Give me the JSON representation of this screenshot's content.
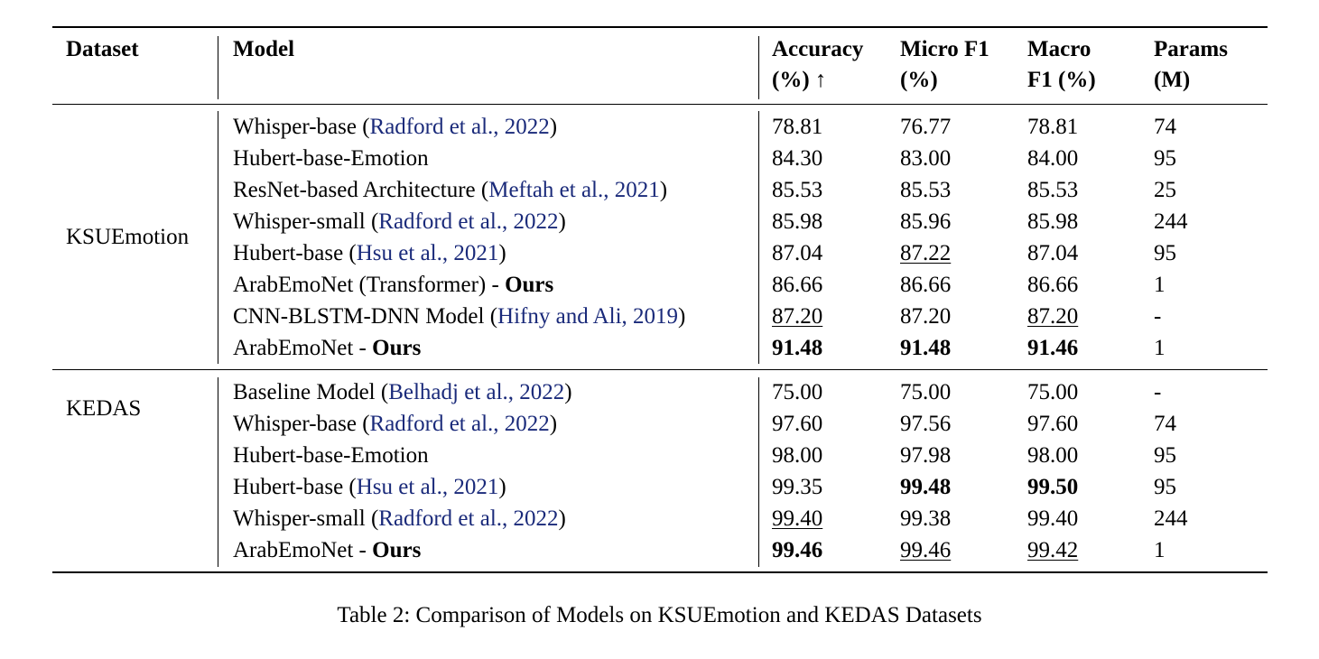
{
  "headers": {
    "dataset": "Dataset",
    "model": "Model",
    "accuracy": [
      "Accuracy",
      "(%) ↑"
    ],
    "micro": [
      "Micro F1",
      "(%)"
    ],
    "macro": [
      "Macro",
      "F1 (%)"
    ],
    "params": [
      "Params",
      "(M)"
    ]
  },
  "groups": [
    {
      "dataset": "KSUEmotion",
      "rows": [
        {
          "model": "Whisper-base",
          "cite": "Radford et al., 2022",
          "ours": "",
          "acc": "78.81",
          "micro": "76.77",
          "macro": "78.81",
          "params": "74"
        },
        {
          "model": "Hubert-base-Emotion",
          "cite": "",
          "ours": "",
          "acc": "84.30",
          "micro": "83.00",
          "macro": "84.00",
          "params": "95"
        },
        {
          "model": "ResNet-based Architecture",
          "cite": "Meftah et al., 2021",
          "ours": "",
          "acc": "85.53",
          "micro": "85.53",
          "macro": "85.53",
          "params": "25"
        },
        {
          "model": "Whisper-small",
          "cite": "Radford et al., 2022",
          "ours": "",
          "acc": "85.98",
          "micro": "85.96",
          "macro": "85.98",
          "params": "244"
        },
        {
          "model": "Hubert-base",
          "cite": "Hsu et al., 2021",
          "ours": "",
          "acc": "87.04",
          "micro": "87.22",
          "macro": "87.04",
          "params": "95",
          "fmt": {
            "micro": "u"
          }
        },
        {
          "model": "ArabEmoNet (Transformer) - ",
          "cite": "",
          "ours": "Ours",
          "acc": "86.66",
          "micro": "86.66",
          "macro": "86.66",
          "params": "1"
        },
        {
          "model": "CNN-BLSTM-DNN Model",
          "cite": "Hifny and Ali, 2019",
          "ours": "",
          "acc": "87.20",
          "micro": "87.20",
          "macro": "87.20",
          "params": "-",
          "fmt": {
            "acc": "u",
            "macro": "u"
          }
        },
        {
          "model": "ArabEmoNet - ",
          "cite": "",
          "ours": "Ours",
          "acc": "91.48",
          "micro": "91.48",
          "macro": "91.46",
          "params": "1",
          "fmt": {
            "acc": "b",
            "micro": "b",
            "macro": "b"
          }
        }
      ]
    },
    {
      "dataset": "KEDAS",
      "rows": [
        {
          "model": "Baseline Model",
          "cite": "Belhadj et al., 2022",
          "ours": "",
          "acc": "75.00",
          "micro": "75.00",
          "macro": "75.00",
          "params": "-"
        },
        {
          "model": "Whisper-base",
          "cite": "Radford et al., 2022",
          "ours": "",
          "acc": "97.60",
          "micro": "97.56",
          "macro": "97.60",
          "params": "74"
        },
        {
          "model": "Hubert-base-Emotion",
          "cite": "",
          "ours": "",
          "acc": "98.00",
          "micro": "97.98",
          "macro": "98.00",
          "params": "95"
        },
        {
          "model": "Hubert-base",
          "cite": "Hsu et al., 2021",
          "ours": "",
          "acc": "99.35",
          "micro": "99.48",
          "macro": "99.50",
          "params": "95",
          "fmt": {
            "micro": "b",
            "macro": "b"
          }
        },
        {
          "model": "Whisper-small",
          "cite": "Radford et al., 2022",
          "ours": "",
          "acc": "99.40",
          "micro": "99.38",
          "macro": "99.40",
          "params": "244",
          "fmt": {
            "acc": "u"
          }
        },
        {
          "model": "ArabEmoNet - ",
          "cite": "",
          "ours": "Ours",
          "acc": "99.46",
          "micro": "99.46",
          "macro": "99.42",
          "params": "1",
          "fmt": {
            "acc": "b",
            "micro": "u",
            "macro": "u"
          }
        }
      ]
    }
  ],
  "caption": "Table 2: Comparison of Models on KSUEmotion and KEDAS Datasets"
}
